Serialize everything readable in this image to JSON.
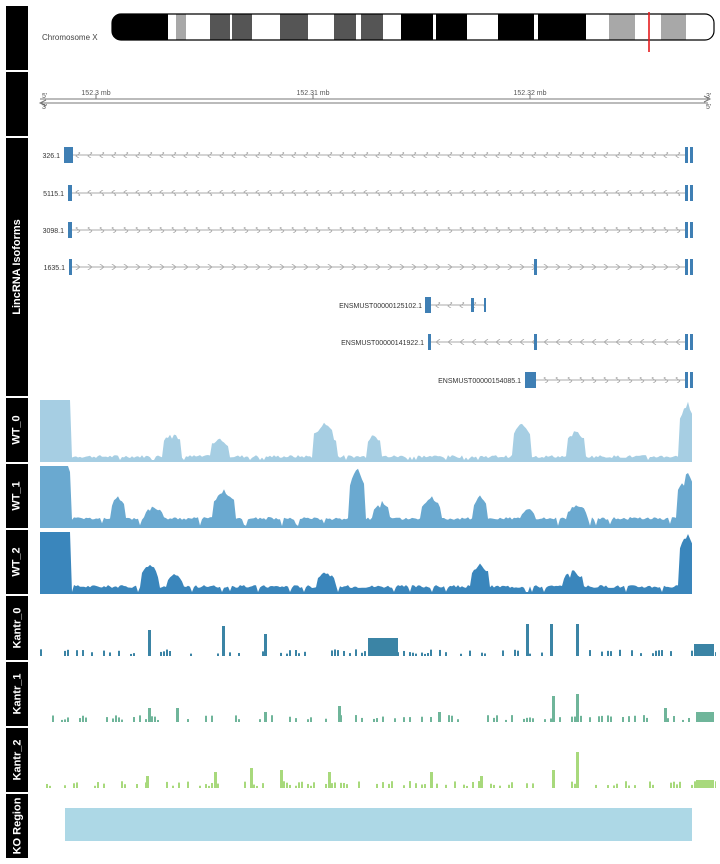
{
  "chromosome": {
    "label": "Chromosome X",
    "marker_color": "#e41a1c"
  },
  "axis": {
    "ticks": [
      "152.3 mb",
      "152.31 mb",
      "152.32 mb"
    ],
    "strand_left": "5'",
    "strand_right": "3'"
  },
  "tracks": [
    {
      "id": "chrom",
      "label": ""
    },
    {
      "id": "axis",
      "label": ""
    },
    {
      "id": "isoforms",
      "label": "LincRNA Isoforms"
    },
    {
      "id": "wt0",
      "label": "WT_0"
    },
    {
      "id": "wt1",
      "label": "WT_1"
    },
    {
      "id": "wt2",
      "label": "WT_2"
    },
    {
      "id": "k0",
      "label": "Kantr_0"
    },
    {
      "id": "k1",
      "label": "Kantr_1"
    },
    {
      "id": "k2",
      "label": "Kantr_2"
    },
    {
      "id": "ko",
      "label": "KO Region"
    }
  ],
  "isoforms": [
    {
      "label": "326.1"
    },
    {
      "label": "5115.1"
    },
    {
      "label": "3098.1"
    },
    {
      "label": "1635.1"
    },
    {
      "label": "ENSMUST00000125102.1"
    },
    {
      "label": "ENSMUST00000141922.1"
    },
    {
      "label": "ENSMUST00000154085.1"
    }
  ],
  "colors": {
    "exon": "#3f7fb4",
    "intron": "#aaaaaa",
    "wt0": "#a6cee3",
    "wt1": "#6aa9d0",
    "wt2": "#3a86bc",
    "k0": "#3b84a5",
    "k1": "#6fb59a",
    "k2": "#a8d97c",
    "ko": "#add8e6"
  }
}
